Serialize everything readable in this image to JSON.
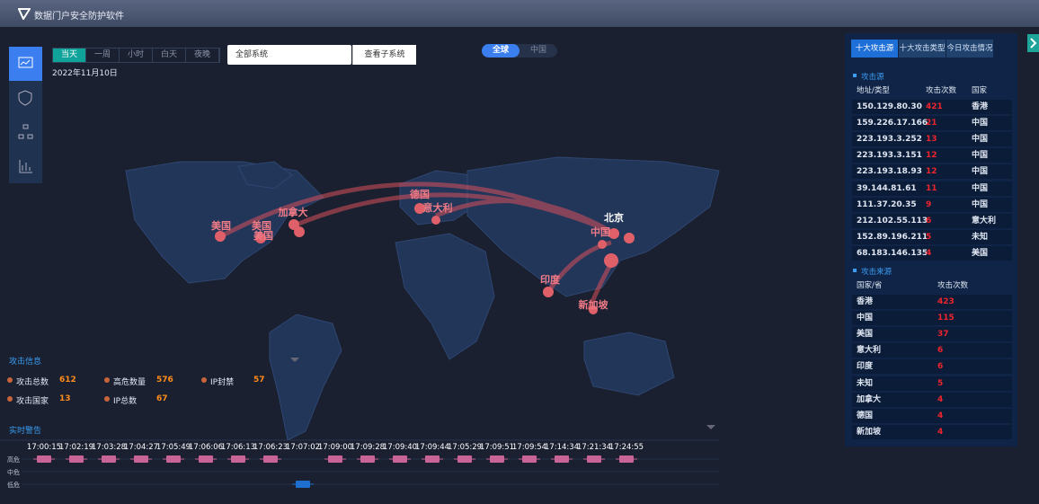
{
  "header": {
    "title": "数据门户安全防护软件"
  },
  "time_tabs": [
    "当天",
    "一周",
    "小时",
    "白天",
    "夜晚"
  ],
  "date": "2022年11月10日",
  "system_select": "全部系统",
  "subsystem_button": "查看子系统",
  "scope_tabs": [
    "全球",
    "中国"
  ],
  "map_labels": [
    "美国",
    "美国",
    "加拿大",
    "美国",
    "德国",
    "意大利",
    "北京",
    "中国",
    "印度",
    "新加坡"
  ],
  "attack_info": {
    "title": "攻击信息",
    "items": [
      {
        "label": "攻击总数",
        "value": 612
      },
      {
        "label": "高危数量",
        "value": 576
      },
      {
        "label": "IP封禁",
        "value": 57
      },
      {
        "label": "攻击国家",
        "value": 13
      },
      {
        "label": "IP总数",
        "value": 67
      }
    ]
  },
  "alerts": {
    "title": "实时警告",
    "levels": [
      "高危",
      "中危",
      "低危"
    ],
    "events": [
      {
        "time": "17:00:15",
        "level": 0
      },
      {
        "time": "17:02:19",
        "level": 0
      },
      {
        "time": "17:03:28",
        "level": 0
      },
      {
        "time": "17:04:27",
        "level": 0
      },
      {
        "time": "17:05:49",
        "level": 0
      },
      {
        "time": "17:06:06",
        "level": 0
      },
      {
        "time": "17:06:13",
        "level": 0
      },
      {
        "time": "17:06:23",
        "level": 0
      },
      {
        "time": "17:07:02",
        "level": 2
      },
      {
        "time": "17:09:00",
        "level": 0
      },
      {
        "time": "17:09:28",
        "level": 0
      },
      {
        "time": "17:09:40",
        "level": 0
      },
      {
        "time": "17:09:44",
        "level": 0
      },
      {
        "time": "17:05:29",
        "level": 0
      },
      {
        "time": "17:09:51",
        "level": 0
      },
      {
        "time": "17:09:54",
        "level": 0
      },
      {
        "time": "17:14:34",
        "level": 0
      },
      {
        "time": "17:21:34",
        "level": 0
      },
      {
        "time": "17:24:55",
        "level": 0
      }
    ]
  },
  "right_panel": {
    "tabs": [
      "十大攻击源",
      "十大攻击类型",
      "今日攻击情况"
    ],
    "sources": {
      "title": "攻击源",
      "headers": [
        "地址/类型",
        "攻击次数",
        "国家"
      ],
      "rows": [
        [
          "150.129.80.30",
          421,
          "香港"
        ],
        [
          "159.226.17.166",
          21,
          "中国"
        ],
        [
          "223.193.3.252",
          13,
          "中国"
        ],
        [
          "223.193.3.151",
          12,
          "中国"
        ],
        [
          "223.193.18.93",
          12,
          "中国"
        ],
        [
          "39.144.81.61",
          11,
          "中国"
        ],
        [
          "111.37.20.35",
          9,
          "中国"
        ],
        [
          "212.102.55.113",
          6,
          "意大利"
        ],
        [
          "152.89.196.211",
          5,
          "未知"
        ],
        [
          "68.183.146.135",
          4,
          "美国"
        ]
      ]
    },
    "origins": {
      "title": "攻击来源",
      "headers": [
        "国家/省",
        "攻击次数"
      ],
      "rows": [
        [
          "香港",
          423
        ],
        [
          "中国",
          115
        ],
        [
          "美国",
          37
        ],
        [
          "意大利",
          6
        ],
        [
          "印度",
          6
        ],
        [
          "未知",
          5
        ],
        [
          "加拿大",
          4
        ],
        [
          "德国",
          4
        ],
        [
          "新加坡",
          4
        ]
      ]
    }
  }
}
